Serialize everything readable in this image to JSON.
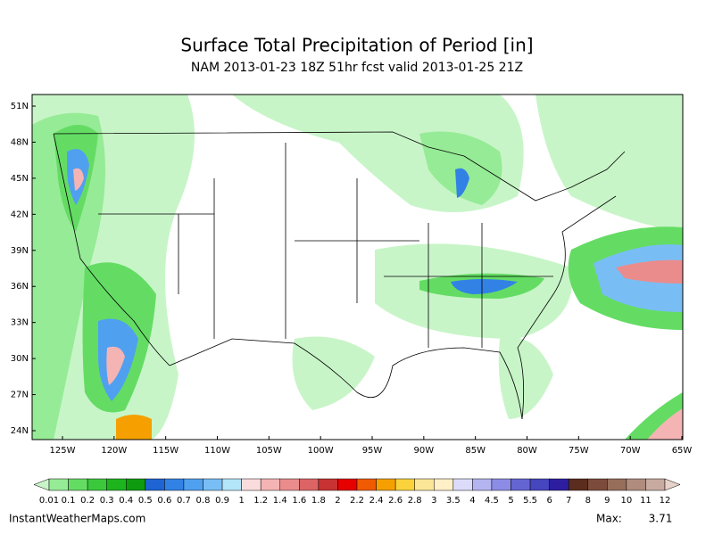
{
  "title": "Surface Total Precipitation of Period [in]",
  "subtitle": "NAM 2013-01-23 18Z 51hr fcst valid 2013-01-25 21Z",
  "map": {
    "lat_labels": [
      "51N",
      "48N",
      "45N",
      "42N",
      "39N",
      "36N",
      "33N",
      "30N",
      "27N",
      "24N"
    ],
    "lon_labels": [
      "125W",
      "120W",
      "115W",
      "110W",
      "105W",
      "100W",
      "95W",
      "90W",
      "85W",
      "80W",
      "75W",
      "70W",
      "65W"
    ]
  },
  "colorbar": {
    "labels": [
      0.01,
      0.1,
      0.2,
      0.3,
      0.4,
      0.5,
      0.6,
      0.7,
      0.8,
      0.9,
      1,
      1.2,
      1.4,
      1.6,
      1.8,
      2,
      2.2,
      2.4,
      2.6,
      2.8,
      3,
      3.5,
      4,
      4.5,
      5,
      5.5,
      6,
      7,
      8,
      9,
      10,
      11,
      12
    ],
    "colors": [
      "#c8f5c8",
      "#96eb96",
      "#64dc64",
      "#3cc83c",
      "#1eb41e",
      "#0f9b0f",
      "#1e64d2",
      "#3282e6",
      "#50a0f0",
      "#78bef5",
      "#b4e6fa",
      "#fadcdc",
      "#f5b4b4",
      "#eb8c8c",
      "#dc6464",
      "#c83232",
      "#e60000",
      "#f05a00",
      "#f5a000",
      "#fad23c",
      "#fae696",
      "#fff0c8",
      "#dcdcfa",
      "#b4b4f0",
      "#8c8ce6",
      "#6464d2",
      "#4646be",
      "#2d1ea0",
      "#5a2d1e",
      "#7d4b3c",
      "#966e5a",
      "#af8c7d",
      "#c8aaa0",
      "#e6d2c8"
    ]
  },
  "footer": {
    "site": "InstantWeatherMaps.com",
    "max_label": "Max:",
    "max_value": 3.71
  }
}
